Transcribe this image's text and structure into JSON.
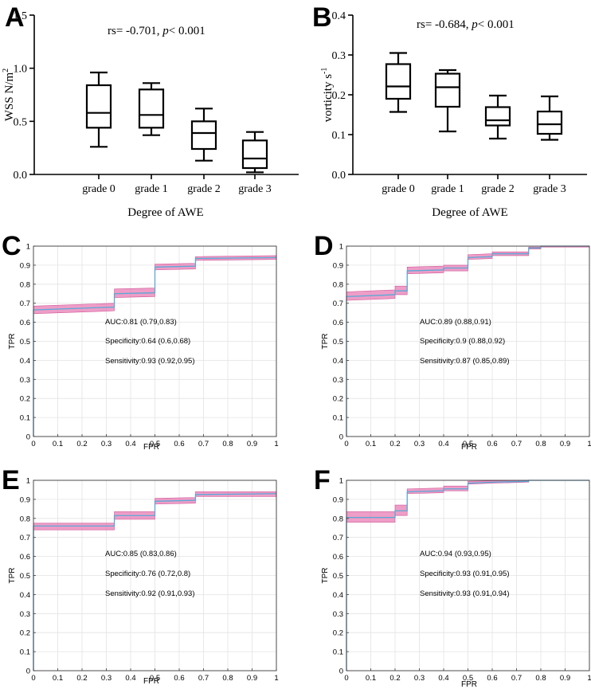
{
  "chart_data": [
    {
      "panel": "A",
      "type": "box",
      "title": "",
      "annotation": {
        "prefix": "rs= -0.701, ",
        "p_symbol": "p",
        "suffix": "< 0.001"
      },
      "xlabel": "Degree of AWE",
      "ylabel": "WSS N/m",
      "ylabel_superscript": "2",
      "ylim": [
        0,
        1.5
      ],
      "yticks": [
        0.0,
        0.5,
        1.0,
        1.5
      ],
      "ytick_labels": [
        "0.0",
        "0.5",
        "1.0",
        "1.5"
      ],
      "categories": [
        "grade 0",
        "grade 1",
        "grade 2",
        "grade 3"
      ],
      "boxes": [
        {
          "min": 0.26,
          "q1": 0.44,
          "median": 0.58,
          "q3": 0.84,
          "max": 0.96
        },
        {
          "min": 0.37,
          "q1": 0.44,
          "median": 0.56,
          "q3": 0.8,
          "max": 0.86
        },
        {
          "min": 0.13,
          "q1": 0.24,
          "median": 0.39,
          "q3": 0.5,
          "max": 0.62
        },
        {
          "min": 0.02,
          "q1": 0.06,
          "median": 0.15,
          "q3": 0.32,
          "max": 0.4
        }
      ]
    },
    {
      "panel": "B",
      "type": "box",
      "title": "",
      "annotation": {
        "prefix": "rs= -0.684,  ",
        "p_symbol": "p",
        "suffix": "< 0.001"
      },
      "xlabel": "Degree of AWE",
      "ylabel": "vorticity s",
      "ylabel_superscript": "-1",
      "ylim": [
        0,
        0.4
      ],
      "yticks": [
        0.0,
        0.1,
        0.2,
        0.3,
        0.4
      ],
      "ytick_labels": [
        "0.0",
        "0.1",
        "0.2",
        "0.3",
        "0.4"
      ],
      "categories": [
        "grade 0",
        "grade 1",
        "grade 2",
        "grade 3"
      ],
      "boxes": [
        {
          "min": 0.157,
          "q1": 0.19,
          "median": 0.221,
          "q3": 0.277,
          "max": 0.305
        },
        {
          "min": 0.108,
          "q1": 0.17,
          "median": 0.219,
          "q3": 0.253,
          "max": 0.262
        },
        {
          "min": 0.09,
          "q1": 0.123,
          "median": 0.136,
          "q3": 0.169,
          "max": 0.198
        },
        {
          "min": 0.087,
          "q1": 0.102,
          "median": 0.126,
          "q3": 0.158,
          "max": 0.196
        }
      ]
    },
    {
      "panel": "C",
      "type": "line",
      "xlabel": "FPR",
      "ylabel": "TPR",
      "xlim": [
        0,
        1
      ],
      "ylim": [
        0,
        1
      ],
      "xticks": [
        0,
        0.1,
        0.2,
        0.3,
        0.4,
        0.5,
        0.6,
        0.7,
        0.8,
        0.9,
        1
      ],
      "yticks": [
        0,
        0.1,
        0.2,
        0.3,
        0.4,
        0.5,
        0.6,
        0.7,
        0.8,
        0.9,
        1
      ],
      "x": [
        0,
        0,
        0.333,
        0.333,
        0.5,
        0.5,
        0.667,
        0.667,
        1.0
      ],
      "y": [
        0,
        0.665,
        0.68,
        0.75,
        0.755,
        0.89,
        0.895,
        0.935,
        0.94
      ],
      "ci_lower": [
        0,
        0.645,
        0.66,
        0.73,
        0.735,
        0.875,
        0.88,
        0.925,
        0.93
      ],
      "ci_upper": [
        0,
        0.685,
        0.7,
        0.775,
        0.78,
        0.905,
        0.91,
        0.945,
        0.95
      ],
      "stats": [
        "AUC:0.81 (0.79,0.83)",
        "Specificity:0.64 (0.6,0.68)",
        "Sensitivity:0.93 (0.92,0.95)"
      ]
    },
    {
      "panel": "D",
      "type": "line",
      "xlabel": "FPR",
      "ylabel": "TPR",
      "xlim": [
        0,
        1
      ],
      "ylim": [
        0,
        1
      ],
      "xticks": [
        0,
        0.1,
        0.2,
        0.3,
        0.4,
        0.5,
        0.6,
        0.7,
        0.8,
        0.9,
        1
      ],
      "yticks": [
        0,
        0.1,
        0.2,
        0.3,
        0.4,
        0.5,
        0.6,
        0.7,
        0.8,
        0.9,
        1
      ],
      "x": [
        0,
        0,
        0.2,
        0.2,
        0.25,
        0.25,
        0.4,
        0.4,
        0.5,
        0.5,
        0.6,
        0.6,
        0.75,
        0.75,
        0.8,
        0.8,
        1.0
      ],
      "y": [
        0,
        0.735,
        0.745,
        0.765,
        0.765,
        0.87,
        0.875,
        0.885,
        0.885,
        0.94,
        0.945,
        0.96,
        0.96,
        0.99,
        0.99,
        1.0,
        1.0
      ],
      "ci_lower": [
        0,
        0.715,
        0.725,
        0.745,
        0.745,
        0.855,
        0.86,
        0.87,
        0.87,
        0.93,
        0.935,
        0.95,
        0.95,
        0.985,
        0.985,
        0.995,
        0.995
      ],
      "ci_upper": [
        0,
        0.76,
        0.77,
        0.79,
        0.79,
        0.89,
        0.895,
        0.9,
        0.9,
        0.955,
        0.96,
        0.97,
        0.97,
        0.995,
        0.995,
        1.0,
        1.0
      ],
      "stats": [
        "AUC:0.89 (0.88,0.91)",
        "Specificity:0.9 (0.88,0.92)",
        "Sensitivity:0.87 (0.85,0.89)"
      ]
    },
    {
      "panel": "E",
      "type": "line",
      "xlabel": "FPR",
      "ylabel": "TPR",
      "xlim": [
        0,
        1
      ],
      "ylim": [
        0,
        1
      ],
      "xticks": [
        0,
        0.1,
        0.2,
        0.3,
        0.4,
        0.5,
        0.6,
        0.7,
        0.8,
        0.9,
        1
      ],
      "yticks": [
        0,
        0.1,
        0.2,
        0.3,
        0.4,
        0.5,
        0.6,
        0.7,
        0.8,
        0.9,
        1
      ],
      "x": [
        0,
        0,
        0.333,
        0.333,
        0.5,
        0.5,
        0.667,
        0.667,
        1.0
      ],
      "y": [
        0,
        0.76,
        0.76,
        0.815,
        0.815,
        0.89,
        0.895,
        0.925,
        0.93
      ],
      "ci_lower": [
        0,
        0.74,
        0.74,
        0.795,
        0.795,
        0.875,
        0.88,
        0.915,
        0.915
      ],
      "ci_upper": [
        0,
        0.775,
        0.775,
        0.835,
        0.835,
        0.905,
        0.91,
        0.94,
        0.94
      ],
      "stats": [
        "AUC:0.85 (0.83,0.86)",
        "Specificity:0.76 (0.72,0.8)",
        "Sensitivity:0.92 (0.91,0.93)"
      ]
    },
    {
      "panel": "F",
      "type": "line",
      "xlabel": "FPR",
      "ylabel": "TPR",
      "xlim": [
        0,
        1
      ],
      "ylim": [
        0,
        1
      ],
      "xticks": [
        0,
        0.1,
        0.2,
        0.3,
        0.4,
        0.5,
        0.6,
        0.7,
        0.8,
        0.9,
        1
      ],
      "yticks": [
        0,
        0.1,
        0.2,
        0.3,
        0.4,
        0.5,
        0.6,
        0.7,
        0.8,
        0.9,
        1
      ],
      "x": [
        0,
        0,
        0.2,
        0.2,
        0.25,
        0.25,
        0.4,
        0.4,
        0.5,
        0.5,
        0.6,
        0.6,
        0.75,
        0.75,
        1.0
      ],
      "y": [
        0,
        0.805,
        0.805,
        0.84,
        0.84,
        0.94,
        0.945,
        0.955,
        0.955,
        0.985,
        0.99,
        0.99,
        0.995,
        1.0,
        1.0
      ],
      "ci_lower": [
        0,
        0.78,
        0.78,
        0.815,
        0.815,
        0.93,
        0.935,
        0.945,
        0.945,
        0.98,
        0.985,
        0.985,
        0.99,
        1.0,
        1.0
      ],
      "ci_upper": [
        0,
        0.835,
        0.835,
        0.87,
        0.87,
        0.955,
        0.96,
        0.97,
        0.97,
        0.995,
        0.997,
        0.997,
        1.0,
        1.0,
        1.0
      ],
      "stats": [
        "AUC:0.94 (0.93,0.95)",
        "Specificity:0.93 (0.91,0.95)",
        "Sensitivity:0.93 (0.91,0.94)"
      ]
    }
  ],
  "colors": {
    "roc_line": "#5aa9d6",
    "ci_fill": "#e87cb4",
    "ci_edge": "#d05898",
    "grid": "#e3e3e3",
    "axis": "#000000"
  }
}
